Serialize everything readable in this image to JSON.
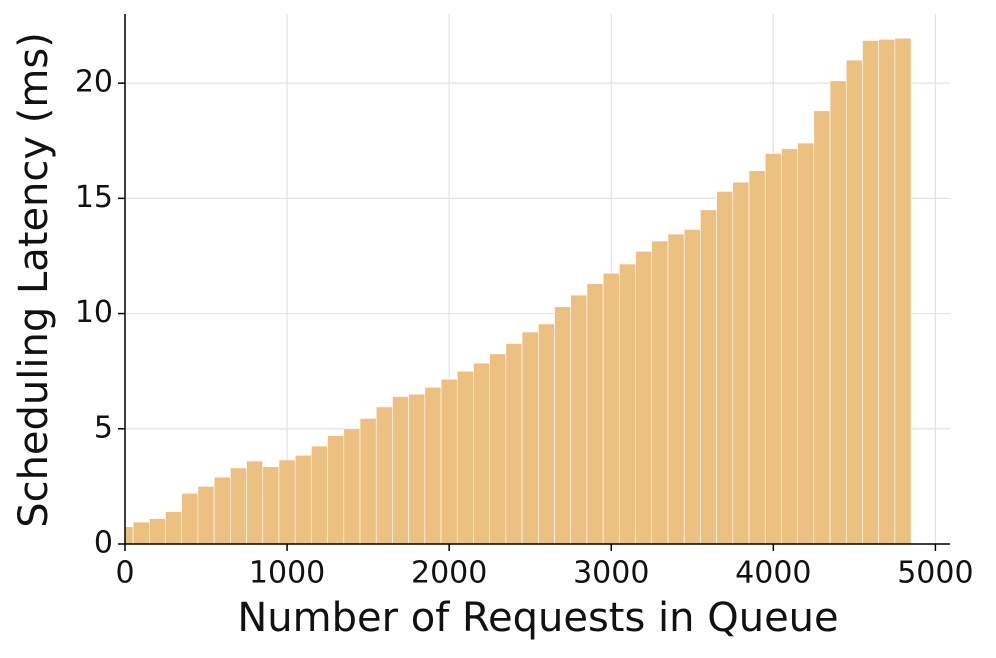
{
  "chart_data": {
    "type": "bar",
    "x_label": "Number of Requests in Queue",
    "y_label": "Scheduling Latency (ms)",
    "x": [
      0,
      100,
      200,
      300,
      400,
      500,
      600,
      700,
      800,
      900,
      1000,
      1100,
      1200,
      1300,
      1400,
      1500,
      1600,
      1700,
      1800,
      1900,
      2000,
      2100,
      2200,
      2300,
      2400,
      2500,
      2600,
      2700,
      2800,
      2900,
      3000,
      3100,
      3200,
      3300,
      3400,
      3500,
      3600,
      3700,
      3800,
      3900,
      4000,
      4100,
      4200,
      4300,
      4400,
      4500,
      4600,
      4700,
      4800
    ],
    "values": [
      0.75,
      0.95,
      1.1,
      1.4,
      2.2,
      2.5,
      2.9,
      3.3,
      3.6,
      3.35,
      3.65,
      3.85,
      4.25,
      4.7,
      5.0,
      5.45,
      5.95,
      6.4,
      6.5,
      6.8,
      7.15,
      7.5,
      7.85,
      8.25,
      8.7,
      9.2,
      9.55,
      10.3,
      10.8,
      11.3,
      11.75,
      12.15,
      12.7,
      13.15,
      13.45,
      13.65,
      14.5,
      15.3,
      15.7,
      16.2,
      16.95,
      17.15,
      17.4,
      18.8,
      20.1,
      21.0,
      21.85,
      21.9,
      21.95
    ],
    "bar_width": 100,
    "color": "#ecc080",
    "xlim": [
      0,
      5090
    ],
    "xticks": [
      0,
      1000,
      2000,
      3000,
      4000,
      5000
    ],
    "ylim": [
      0,
      23
    ],
    "yticks": [
      0,
      5,
      10,
      15,
      20
    ],
    "grid": true
  }
}
